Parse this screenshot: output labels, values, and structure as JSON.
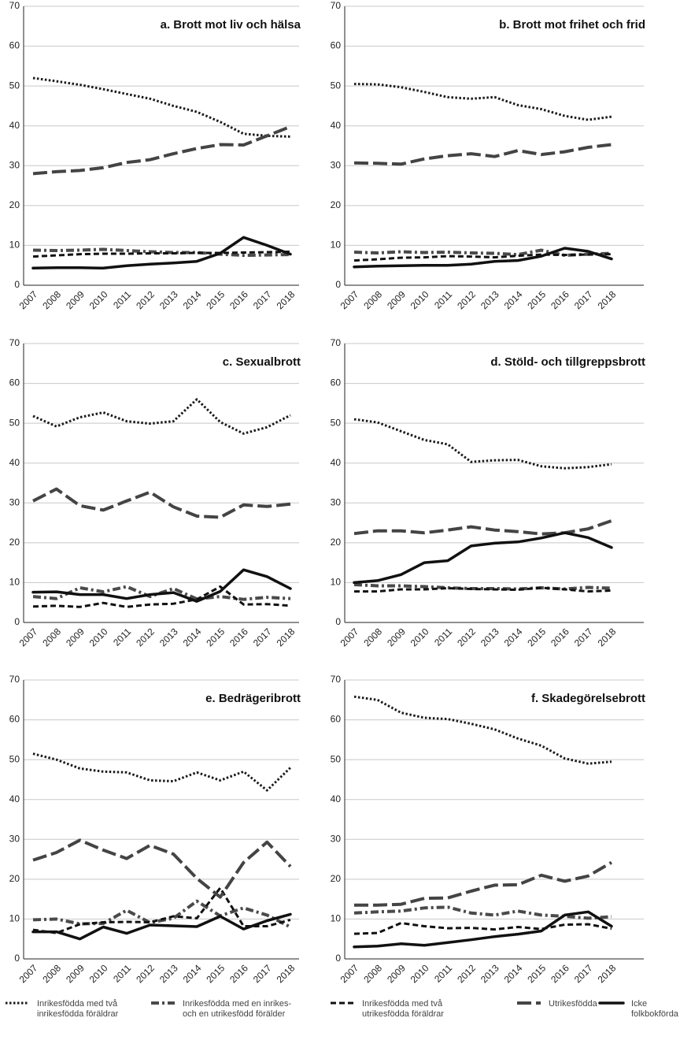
{
  "chart_data": [
    {
      "type": "line",
      "title": "a. Brott mot liv och hälsa",
      "categories": [
        "2007",
        "2008",
        "2009",
        "2010",
        "2011",
        "2012",
        "2013",
        "2014",
        "2015",
        "2016",
        "2017",
        "2018"
      ],
      "ylim": [
        0,
        70
      ],
      "yticks": [
        0,
        10,
        20,
        30,
        40,
        50,
        60,
        70
      ],
      "grid": true,
      "series": [
        {
          "values": [
            52,
            51.2,
            50.3,
            49.2,
            48,
            46.8,
            45,
            43.5,
            41,
            38,
            37.5,
            37.3
          ]
        },
        {
          "values": [
            8.8,
            8.7,
            8.8,
            9,
            8.7,
            8.4,
            8.2,
            8.2,
            7.8,
            7.5,
            7.6,
            7.7
          ]
        },
        {
          "values": [
            7.2,
            7.5,
            7.8,
            7.9,
            7.9,
            8,
            8,
            8.1,
            8.1,
            8.2,
            8.3,
            8.4
          ]
        },
        {
          "values": [
            28,
            28.5,
            28.8,
            29.5,
            30.8,
            31.5,
            33,
            34.3,
            35.3,
            35.2,
            37.5,
            39.8
          ]
        },
        {
          "values": [
            4.3,
            4.4,
            4.4,
            4.3,
            4.9,
            5.3,
            5.6,
            6,
            8,
            12,
            10,
            7.8
          ]
        }
      ]
    },
    {
      "type": "line",
      "title": "b. Brott mot frihet och frid",
      "categories": [
        "2007",
        "2008",
        "2009",
        "2010",
        "2011",
        "2012",
        "2013",
        "2014",
        "2015",
        "2016",
        "2017",
        "2018"
      ],
      "ylim": [
        0,
        70
      ],
      "yticks": [
        0,
        10,
        20,
        30,
        40,
        50,
        60,
        70
      ],
      "grid": true,
      "series": [
        {
          "values": [
            50.5,
            50.4,
            49.7,
            48.5,
            47.2,
            46.8,
            47.2,
            45.2,
            44.2,
            42.5,
            41.5,
            42.3
          ]
        },
        {
          "values": [
            8.3,
            8.1,
            8.4,
            8.2,
            8.3,
            8.1,
            8,
            7.7,
            8.8,
            7.5,
            7.8,
            8
          ]
        },
        {
          "values": [
            6.2,
            6.5,
            6.9,
            7,
            7.3,
            7.2,
            7,
            7.4,
            7.7,
            7.6,
            7.7,
            7.8
          ]
        },
        {
          "values": [
            30.7,
            30.6,
            30.4,
            31.7,
            32.5,
            33,
            32.3,
            33.8,
            32.8,
            33.5,
            34.6,
            35.3
          ]
        },
        {
          "values": [
            4.6,
            4.8,
            4.9,
            5,
            5,
            5.3,
            6,
            6.2,
            7.3,
            9.3,
            8.5,
            6.6
          ]
        }
      ]
    },
    {
      "type": "line",
      "title": "c. Sexualbrott",
      "categories": [
        "2007",
        "2008",
        "2009",
        "2010",
        "2011",
        "2012",
        "2013",
        "2014",
        "2015",
        "2016",
        "2017",
        "2018"
      ],
      "ylim": [
        0,
        70
      ],
      "yticks": [
        0,
        10,
        20,
        30,
        40,
        50,
        60,
        70
      ],
      "grid": true,
      "series": [
        {
          "values": [
            51.8,
            49.2,
            51.5,
            52.7,
            50.5,
            49.9,
            50.5,
            56,
            50.3,
            47.4,
            49,
            52
          ]
        },
        {
          "values": [
            6.5,
            6,
            8.7,
            7.7,
            9,
            6.5,
            8.5,
            5.9,
            6.5,
            5.8,
            6.3,
            6
          ]
        },
        {
          "values": [
            4,
            4.2,
            3.9,
            4.9,
            3.9,
            4.5,
            4.7,
            5.8,
            9,
            4.5,
            4.6,
            4.2
          ]
        },
        {
          "values": [
            30.5,
            33.5,
            29.3,
            28.2,
            30.5,
            32.7,
            29,
            26.7,
            26.4,
            29.5,
            29.1,
            29.7
          ]
        },
        {
          "values": [
            7.6,
            7.7,
            7,
            7,
            6,
            7,
            7.5,
            5.3,
            7.8,
            13.2,
            11.5,
            8.5
          ]
        }
      ]
    },
    {
      "type": "line",
      "title": "d. Stöld- och tillgreppsbrott",
      "categories": [
        "2007",
        "2008",
        "2009",
        "2010",
        "2011",
        "2012",
        "2013",
        "2014",
        "2015",
        "2016",
        "2017",
        "2018"
      ],
      "ylim": [
        0,
        70
      ],
      "yticks": [
        0,
        10,
        20,
        30,
        40,
        50,
        60,
        70
      ],
      "grid": true,
      "series": [
        {
          "values": [
            51,
            50.2,
            48,
            45.8,
            44.7,
            40.3,
            40.7,
            40.8,
            39.2,
            38.7,
            39,
            39.7
          ]
        },
        {
          "values": [
            9.5,
            9.2,
            9.2,
            9,
            8.7,
            8.5,
            8.5,
            8.4,
            8.7,
            8.4,
            8.8,
            8.6
          ]
        },
        {
          "values": [
            7.8,
            7.8,
            8.3,
            8.3,
            8.6,
            8.4,
            8.3,
            8.2,
            8.7,
            8.3,
            7.8,
            8
          ]
        },
        {
          "values": [
            22.3,
            23,
            23,
            22.5,
            23.2,
            24,
            23.2,
            22.8,
            22.2,
            22.5,
            23.5,
            25.5
          ]
        },
        {
          "values": [
            10,
            10.5,
            12,
            15,
            15.5,
            19.2,
            19.9,
            20.2,
            21.2,
            22.5,
            21.3,
            18.8
          ]
        }
      ]
    },
    {
      "type": "line",
      "title": "e. Bedrägeribrott",
      "categories": [
        "2007",
        "2008",
        "2009",
        "2010",
        "2011",
        "2012",
        "2013",
        "2014",
        "2015",
        "2016",
        "2017",
        "2018"
      ],
      "ylim": [
        0,
        70
      ],
      "yticks": [
        0,
        10,
        20,
        30,
        40,
        50,
        60,
        70
      ],
      "grid": true,
      "series": [
        {
          "values": [
            51.5,
            50,
            47.8,
            47,
            46.8,
            44.8,
            44.6,
            46.8,
            44.8,
            47,
            42.3,
            48
          ]
        },
        {
          "values": [
            9.8,
            10,
            8.8,
            8.9,
            12.2,
            9.1,
            10.2,
            14.5,
            10.8,
            12.8,
            11,
            8
          ]
        },
        {
          "values": [
            7.3,
            6.5,
            8.7,
            9.2,
            9.3,
            9.2,
            10.7,
            10.2,
            17.8,
            8.2,
            8.2,
            9.8
          ]
        },
        {
          "values": [
            24.8,
            26.7,
            29.8,
            27.3,
            25.2,
            28.5,
            26.3,
            20.2,
            15.5,
            24.2,
            29.3,
            23.2
          ]
        },
        {
          "values": [
            6.8,
            6.8,
            5,
            8,
            6.4,
            8.5,
            8.3,
            8.1,
            10.7,
            7.5,
            9.6,
            11.2
          ]
        }
      ]
    },
    {
      "type": "line",
      "title": "f. Skadegörelsebrott",
      "categories": [
        "2007",
        "2008",
        "2009",
        "2010",
        "2011",
        "2012",
        "2013",
        "2014",
        "2015",
        "2016",
        "2017",
        "2018"
      ],
      "ylim": [
        0,
        70
      ],
      "yticks": [
        0,
        10,
        20,
        30,
        40,
        50,
        60,
        70
      ],
      "grid": true,
      "series": [
        {
          "values": [
            65.8,
            65,
            61.8,
            60.5,
            60.2,
            59,
            57.6,
            55.3,
            53.5,
            50.3,
            49,
            49.5
          ]
        },
        {
          "values": [
            11.5,
            11.8,
            12,
            12.8,
            13,
            11.5,
            11,
            12,
            11,
            10.7,
            10.2,
            10.6
          ]
        },
        {
          "values": [
            6.3,
            6.5,
            9,
            8.2,
            7.7,
            7.8,
            7.4,
            8,
            7.5,
            8.6,
            8.7,
            7.6
          ]
        },
        {
          "values": [
            13.5,
            13.5,
            13.7,
            15.2,
            15.3,
            17,
            18.5,
            18.6,
            21,
            19.5,
            20.8,
            24.2
          ]
        },
        {
          "values": [
            3,
            3.2,
            3.8,
            3.4,
            4.1,
            4.8,
            5.6,
            6.2,
            7,
            11,
            11.8,
            8.2
          ]
        }
      ]
    }
  ],
  "legend": [
    {
      "name": "Inrikesfödda med två inrikesfödda föräldrar",
      "color": "#1a1a1a",
      "style": "dotted"
    },
    {
      "name": "Inrikesfödda med en inrikes- och en utrikesfödd förälder",
      "color": "#4a4a4a",
      "style": "dashdot"
    },
    {
      "name": "Inrikesfödda med två utrikesfödda föräldrar",
      "color": "#111111",
      "style": "dashed"
    },
    {
      "name": "Utrikesfödda",
      "color": "#444444",
      "style": "longdash"
    },
    {
      "name": "Icke folkbokförda",
      "color": "#111111",
      "style": "solid"
    }
  ]
}
